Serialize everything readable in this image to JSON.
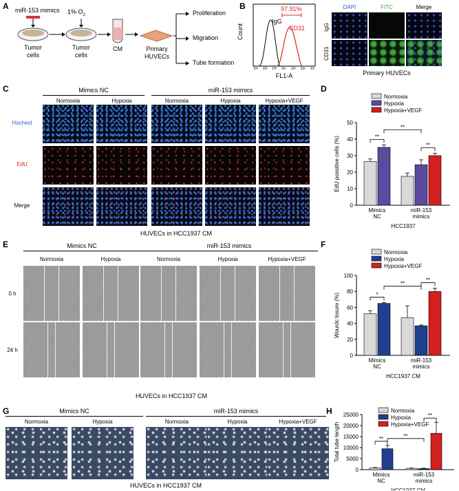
{
  "panel_letters": {
    "A": "A",
    "B": "B",
    "C": "C",
    "D": "D",
    "E": "E",
    "F": "F",
    "G": "G",
    "H": "H"
  },
  "panel_a": {
    "mimics": "miR-153 mimics",
    "o2": "1% O",
    "o2_sub": "2",
    "tumor_cells_1": "Tumor\ncells",
    "tumor_cells_2": "Tumor\ncells",
    "cm": "CM",
    "primary_huvecs": "Primary\nHUVECs",
    "outcomes": [
      "Proliferation",
      "Migration",
      "Tube formation"
    ]
  },
  "panel_b": {
    "igg": "IgG",
    "cd31": "CD31",
    "percent": "97.91%",
    "ylabel": "Count",
    "xlabel": "FL1-A",
    "ticks": [
      "10¹",
      "10²",
      "10³",
      "10⁴",
      "10⁵",
      "10⁶",
      "10⁷"
    ],
    "col_headers": [
      "DAPI",
      "FITC",
      "Merge"
    ],
    "row_labels": [
      "IgG",
      "CD31"
    ],
    "caption": "Primary HUVECs"
  },
  "panel_c": {
    "group_nc": "Mimics NC",
    "group_mir": "miR-153 mimics",
    "conditions": [
      "Normoxia",
      "Hypoxia",
      "Normoxia",
      "Hypoxia",
      "Hypoxia+VEGF"
    ],
    "rows": [
      "Hochest",
      "EdU",
      "Merge"
    ],
    "caption": "HUVECs in HCC1937 CM"
  },
  "panel_e": {
    "group_nc": "Mimics NC",
    "group_mir": "miR-153 mimics",
    "conditions": [
      "Normoxia",
      "Hypoxia",
      "Normoxia",
      "Hypoxia",
      "Hypoxia+VEGF"
    ],
    "rows": [
      "0 h",
      "24 h"
    ],
    "caption": "HUVECs in HCC1937 CM"
  },
  "panel_g": {
    "group_nc": "Mimics NC",
    "group_mir": "miR-153 mimics",
    "conditions": [
      "Normoxia",
      "Hypoxia",
      "Normoxia",
      "Hypoxia",
      "Hypoxia+VEGF"
    ],
    "caption": "HUVECs in HCC1937 CM"
  },
  "colors": {
    "normoxia": "#d9d9d9",
    "hypoxia_d": "#5b4a9e",
    "hypoxia_fh": "#1f3f8f",
    "vegf": "#d32020",
    "flow_igg": "#000000",
    "flow_cd31": "#e02020"
  },
  "chart_data": [
    {
      "type": "bar",
      "id": "D",
      "categories": [
        "Mimics\nNC",
        "miR-153\nmimics"
      ],
      "xlabel": "HCC1937",
      "ylabel": "EdU possitive cells (%)",
      "ylim": [
        0,
        50
      ],
      "yticks": [
        "0",
        "10",
        "20",
        "30",
        "40",
        "50"
      ],
      "series": [
        {
          "name": "Normoxia",
          "values": [
            26.5,
            17.5
          ],
          "errors": [
            1.5,
            2.0
          ]
        },
        {
          "name": "Hypoxia",
          "values": [
            35,
            24.5
          ],
          "errors": [
            1.5,
            3.0
          ]
        },
        {
          "name": "Hypoxia+VEGF",
          "values": [
            null,
            30
          ],
          "errors": [
            null,
            1.5
          ]
        }
      ],
      "significance": [
        "**",
        "**",
        "**"
      ]
    },
    {
      "type": "bar",
      "id": "F",
      "categories": [
        "Mimics\nNC",
        "miR-153\nmimics"
      ],
      "xlabel": "HCC1937 CM",
      "ylabel": "Wourdc losure (%)",
      "ylim": [
        0,
        100
      ],
      "yticks": [
        "0",
        "20",
        "40",
        "60",
        "80",
        "100"
      ],
      "series": [
        {
          "name": "Normoxia",
          "values": [
            52,
            47
          ],
          "errors": [
            4,
            15
          ]
        },
        {
          "name": "Hypoxia",
          "values": [
            65,
            37
          ],
          "errors": [
            1,
            1
          ]
        },
        {
          "name": "Hypoxia+VEGF",
          "values": [
            null,
            80
          ],
          "errors": [
            null,
            4
          ]
        }
      ],
      "significance": [
        "*",
        "**",
        "**"
      ]
    },
    {
      "type": "bar",
      "id": "H",
      "categories": [
        "Mimics\nNC",
        "miR-153\nmimics"
      ],
      "xlabel": "HCC1937 CM",
      "ylabel": "Total tube length",
      "ylim": [
        0,
        25000
      ],
      "yticks": [
        "0",
        "5000",
        "10000",
        "15000",
        "20000",
        "25000"
      ],
      "series": [
        {
          "name": "Normoxia",
          "values": [
            800,
            600
          ],
          "errors": [
            200,
            150
          ]
        },
        {
          "name": "Hypoxia",
          "values": [
            9500,
            500
          ],
          "errors": [
            1500,
            150
          ]
        },
        {
          "name": "Hypoxia+VEGF",
          "values": [
            null,
            16500
          ],
          "errors": [
            null,
            5000
          ]
        }
      ],
      "significance": [
        "**",
        "**",
        "**"
      ]
    }
  ]
}
